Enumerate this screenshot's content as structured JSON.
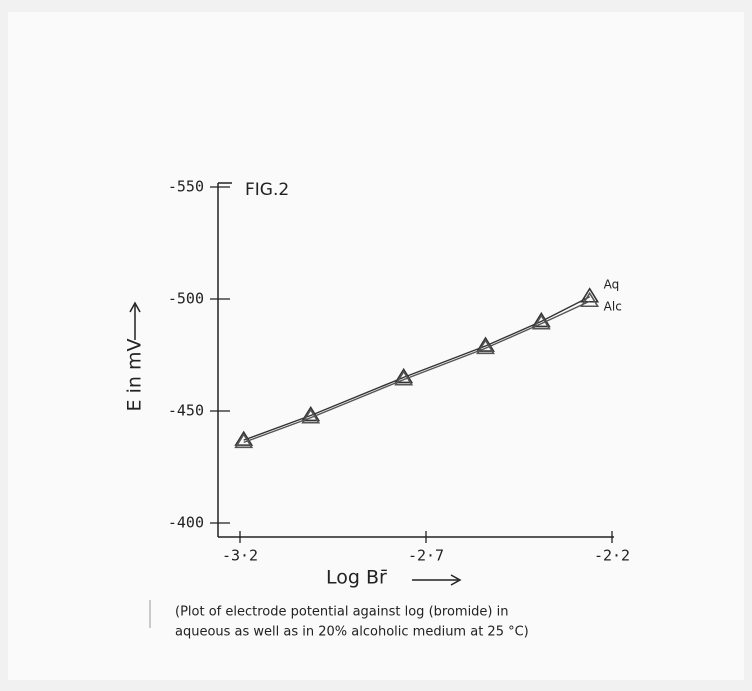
{
  "chart_data": {
    "type": "line",
    "title": "FIG.2",
    "x_label": "Log Br̄",
    "y_label": "E in mV",
    "caption": [
      "(Plot of electrode potential against log (bromide) in",
      "aqueous as well as in 20% alcoholic medium at 25 °C)"
    ],
    "xlim": [
      -3.2,
      -2.2
    ],
    "xticks": [
      {
        "value": -3.2,
        "label": "-3·2"
      },
      {
        "value": -2.7,
        "label": "-2·7"
      },
      {
        "value": -2.2,
        "label": "-2·2"
      }
    ],
    "ylim": [
      -400,
      -550
    ],
    "yticks": [
      -550,
      -500,
      -450,
      -400
    ],
    "series": [
      {
        "name": "Aq",
        "color": "#333333",
        "x": [
          -3.19,
          -3.01,
          -2.76,
          -2.54,
          -2.39,
          -2.26
        ],
        "values": [
          -437,
          -448,
          -465,
          -479,
          -490,
          -501
        ]
      },
      {
        "name": "Alc",
        "color": "#555555",
        "x": [
          -3.19,
          -3.01,
          -2.76,
          -2.54,
          -2.39,
          -2.26
        ],
        "values": [
          -436,
          -447,
          -464,
          -478,
          -489,
          -499
        ]
      }
    ]
  }
}
